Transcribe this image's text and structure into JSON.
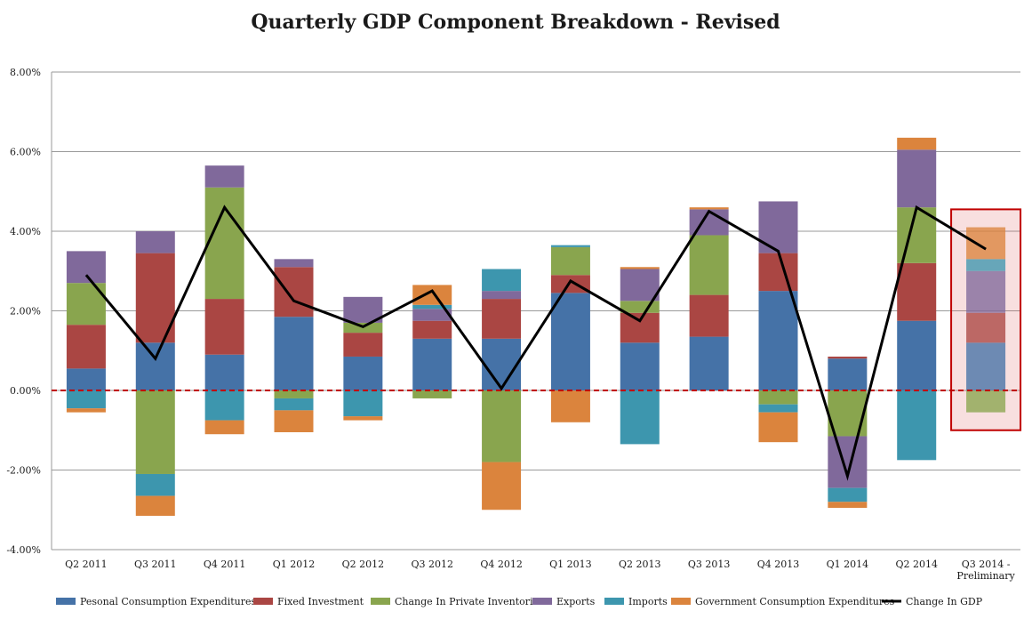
{
  "chart_data": {
    "type": "bar",
    "stacked": true,
    "title": "Quarterly GDP Component Breakdown - Revised",
    "xlabel": "",
    "ylabel": "",
    "ylim": [
      -4,
      8
    ],
    "y_ticks": [
      {
        "value": 8,
        "label": "8.00%"
      },
      {
        "value": 6,
        "label": "6.00%"
      },
      {
        "value": 4,
        "label": "4.00%"
      },
      {
        "value": 2,
        "label": "2.00%"
      },
      {
        "value": 0,
        "label": "0.00%"
      },
      {
        "value": -2,
        "label": "-2.00%"
      },
      {
        "value": -4,
        "label": "-4.00%"
      }
    ],
    "grid": true,
    "categories": [
      [
        "Q2 2011"
      ],
      [
        "Q3 2011"
      ],
      [
        "Q4 2011"
      ],
      [
        "Q1 2012"
      ],
      [
        "Q2 2012"
      ],
      [
        "Q3 2012"
      ],
      [
        "Q4 2012"
      ],
      [
        "Q1 2013"
      ],
      [
        "Q2 2013"
      ],
      [
        "Q3 2013"
      ],
      [
        "Q4 2013"
      ],
      [
        "Q1 2014"
      ],
      [
        "Q2 2014"
      ],
      [
        "Q3 2014 -",
        "Preliminary"
      ]
    ],
    "series": [
      {
        "name": "Pesonal Consumption Expenditures",
        "color": "#4572a7",
        "values": [
          0.55,
          1.2,
          0.9,
          1.85,
          0.85,
          1.3,
          1.3,
          2.45,
          1.2,
          1.35,
          2.5,
          0.8,
          1.75,
          1.2
        ]
      },
      {
        "name": "Fixed Investment",
        "color": "#aa4643",
        "values": [
          1.1,
          2.25,
          1.4,
          1.25,
          0.6,
          0.45,
          1.0,
          0.45,
          0.75,
          1.05,
          0.95,
          0.05,
          1.45,
          0.75
        ]
      },
      {
        "name": "Change In Private Inventories",
        "color": "#89a54e",
        "values": [
          1.05,
          -2.1,
          2.8,
          -0.2,
          0.25,
          -0.2,
          -1.8,
          0.7,
          0.3,
          1.5,
          -0.35,
          -1.15,
          1.4,
          -0.55
        ]
      },
      {
        "name": "Exports",
        "color": "#80699b",
        "values": [
          0.8,
          0.55,
          0.55,
          0.2,
          0.65,
          0.3,
          0.2,
          0.0,
          0.8,
          0.65,
          1.3,
          -1.3,
          1.45,
          1.05
        ]
      },
      {
        "name": "Imports",
        "color": "#3d96ae",
        "values": [
          -0.45,
          -0.55,
          -0.75,
          -0.3,
          -0.65,
          0.1,
          0.55,
          0.05,
          -1.35,
          0.0,
          -0.2,
          -0.35,
          -1.75,
          0.3
        ]
      },
      {
        "name": "Government Consumption Expenditures",
        "color": "#db843d",
        "values": [
          -0.1,
          -0.5,
          -0.35,
          -0.55,
          -0.1,
          0.5,
          -1.2,
          -0.8,
          0.05,
          0.05,
          -0.75,
          -0.15,
          0.3,
          0.8
        ]
      }
    ],
    "line_series": {
      "name": "Change In GDP",
      "color": "#000000",
      "values": [
        2.9,
        0.8,
        4.6,
        2.25,
        1.6,
        2.5,
        0.05,
        2.75,
        1.75,
        4.5,
        3.5,
        -2.15,
        4.6,
        3.55
      ]
    },
    "zero_line_color": "#c00000",
    "highlight": {
      "category_index": 13,
      "ymin": -1.0,
      "ymax": 4.55,
      "color": "#c00000"
    },
    "legend_position": "bottom"
  }
}
